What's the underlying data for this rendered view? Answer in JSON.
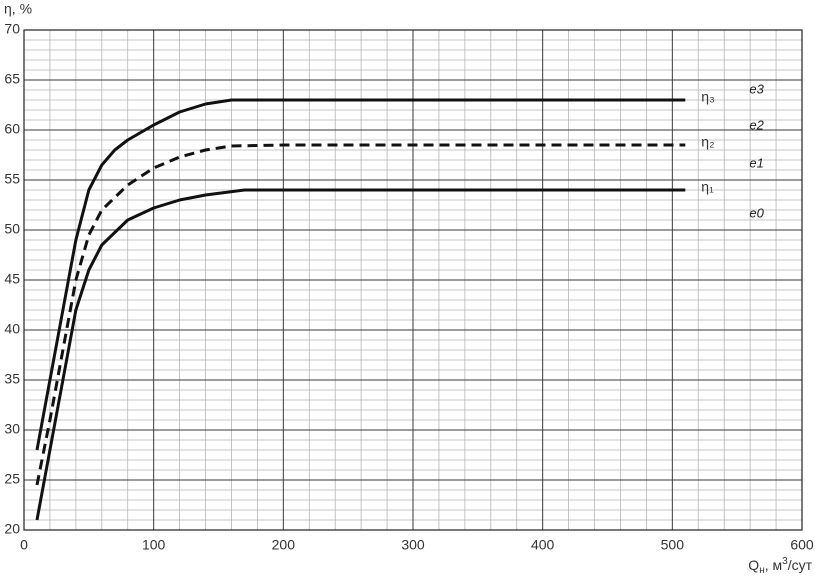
{
  "chart_data": {
    "type": "line",
    "y_label": "η, %",
    "x_label": [
      "Q",
      "н",
      ", м",
      "3",
      "/сут"
    ],
    "xlim": [
      0,
      600
    ],
    "xticks": [
      0,
      100,
      200,
      300,
      400,
      500,
      600
    ],
    "ylim": [
      20,
      70
    ],
    "yticks": [
      20,
      25,
      30,
      35,
      40,
      45,
      50,
      55,
      60,
      65,
      70
    ],
    "grid": true,
    "annotations": [
      "e3",
      "e2",
      "e1",
      "e0"
    ],
    "series": [
      {
        "name": "η₃",
        "color": "#111111",
        "dash": false,
        "x": [
          10,
          20,
          30,
          40,
          50,
          60,
          70,
          80,
          100,
          120,
          140,
          160,
          200,
          510
        ],
        "values": [
          28,
          35,
          42,
          49,
          54,
          56.5,
          58,
          59,
          60.5,
          61.8,
          62.6,
          63,
          63,
          63
        ]
      },
      {
        "name": "η₂",
        "color": "#111111",
        "dash": true,
        "x": [
          10,
          20,
          30,
          40,
          50,
          60,
          80,
          100,
          120,
          140,
          160,
          200,
          510
        ],
        "values": [
          24.5,
          31,
          38,
          45,
          49.5,
          52,
          54.5,
          56.2,
          57.3,
          58,
          58.4,
          58.5,
          58.5
        ]
      },
      {
        "name": "η₁",
        "color": "#111111",
        "dash": false,
        "x": [
          10,
          20,
          30,
          40,
          50,
          60,
          80,
          100,
          120,
          140,
          170,
          200,
          510
        ],
        "values": [
          21,
          28,
          35,
          42,
          46,
          48.5,
          51,
          52.2,
          53,
          53.5,
          54,
          54,
          54
        ]
      }
    ]
  }
}
